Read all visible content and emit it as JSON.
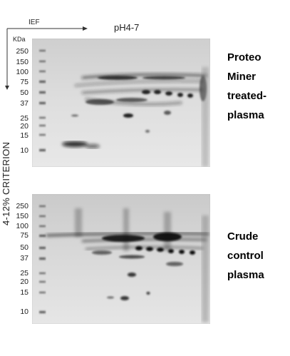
{
  "header": {
    "ief": "IEF",
    "ph": "pH4-7",
    "kda": "KDa"
  },
  "axis_vertical": "4-12% CRITERION",
  "top_gel": {
    "label_lines": [
      "Proteo",
      "Miner",
      "treated-",
      "plasma"
    ],
    "markers": [
      "250",
      "150",
      "100",
      "75",
      "50",
      "37",
      "25",
      "20",
      "15",
      "10"
    ]
  },
  "bottom_gel": {
    "label_lines": [
      "Crude",
      "control",
      "plasma"
    ],
    "markers": [
      "250",
      "150",
      "100",
      "75",
      "50",
      "37",
      "25",
      "20",
      "15",
      "10"
    ]
  }
}
